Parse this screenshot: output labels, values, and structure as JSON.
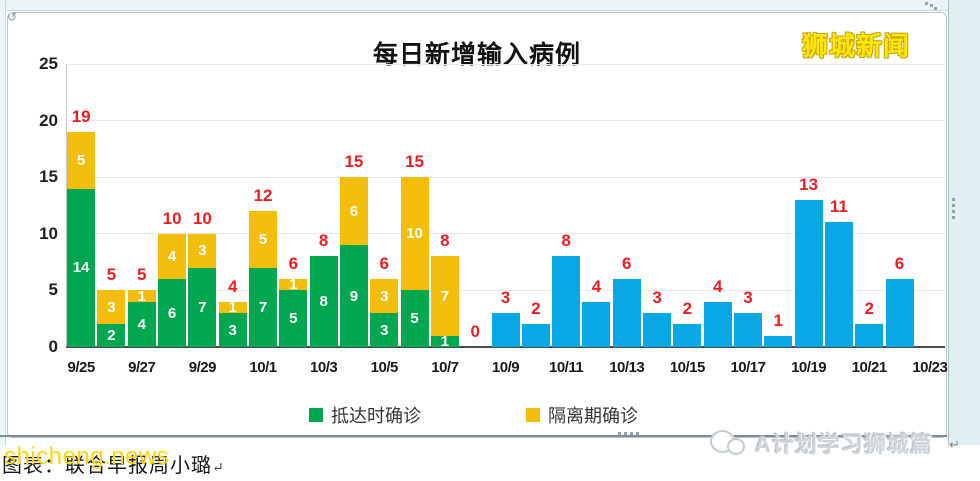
{
  "window": {
    "brand": "狮城新闻"
  },
  "chart_data": {
    "type": "bar",
    "stacked": true,
    "title": "每日新增输入病例",
    "xlabel": "",
    "ylabel": "",
    "ylim": [
      0,
      25
    ],
    "yticks": [
      0,
      5,
      10,
      15,
      20,
      25
    ],
    "grid": "horizontal",
    "legend_position": "bottom",
    "xtick_every": 2,
    "xtick_labels": [
      "9/25",
      "9/27",
      "9/29",
      "10/1",
      "10/3",
      "10/5",
      "10/7",
      "10/9",
      "10/11",
      "10/13",
      "10/15",
      "10/17",
      "10/19",
      "10/21",
      "10/23"
    ],
    "categories": [
      "9/25",
      "9/26",
      "9/27",
      "9/28",
      "9/29",
      "9/30",
      "10/1",
      "10/2",
      "10/3",
      "10/4",
      "10/5",
      "10/6",
      "10/7",
      "10/8",
      "10/9",
      "10/10",
      "10/11",
      "10/12",
      "10/13",
      "10/14",
      "10/15",
      "10/16",
      "10/17",
      "10/18",
      "10/19",
      "10/20",
      "10/21",
      "10/22"
    ],
    "series": [
      {
        "name": "抵达时确诊",
        "color": "#00A650",
        "show_labels": true,
        "values": [
          14,
          2,
          4,
          6,
          7,
          3,
          7,
          5,
          8,
          9,
          3,
          5,
          1,
          0,
          0,
          0,
          0,
          0,
          0,
          0,
          0,
          0,
          0,
          0,
          0,
          0,
          0,
          0
        ]
      },
      {
        "name": "隔离期确诊",
        "color": "#F2BE0B",
        "show_labels": true,
        "values": [
          5,
          3,
          1,
          4,
          3,
          1,
          5,
          1,
          0,
          6,
          3,
          10,
          7,
          0,
          0,
          0,
          0,
          0,
          0,
          0,
          0,
          0,
          0,
          0,
          0,
          0,
          0,
          0
        ]
      },
      {
        "name": "unlabeled_blue",
        "color": "#09A7E3",
        "show_labels": false,
        "values": [
          0,
          0,
          0,
          0,
          0,
          0,
          0,
          0,
          0,
          0,
          0,
          0,
          0,
          0,
          3,
          2,
          8,
          4,
          6,
          3,
          2,
          4,
          3,
          1,
          13,
          11,
          2,
          6
        ]
      }
    ],
    "totals": [
      19,
      5,
      5,
      10,
      10,
      4,
      12,
      6,
      8,
      15,
      6,
      15,
      8,
      0,
      3,
      2,
      8,
      4,
      6,
      3,
      2,
      4,
      3,
      1,
      13,
      11,
      2,
      6
    ],
    "total_color": "#ED1C24",
    "legend": [
      {
        "label": "抵达时确诊",
        "color": "#00A650"
      },
      {
        "label": "隔离期确诊",
        "color": "#F2BE0B"
      }
    ]
  },
  "footer": {
    "watermark": "shicheng.news",
    "caption": "图表：联合早报周小璐",
    "pilcrow": "↵",
    "logo_text": "A计划学习狮城篇"
  }
}
